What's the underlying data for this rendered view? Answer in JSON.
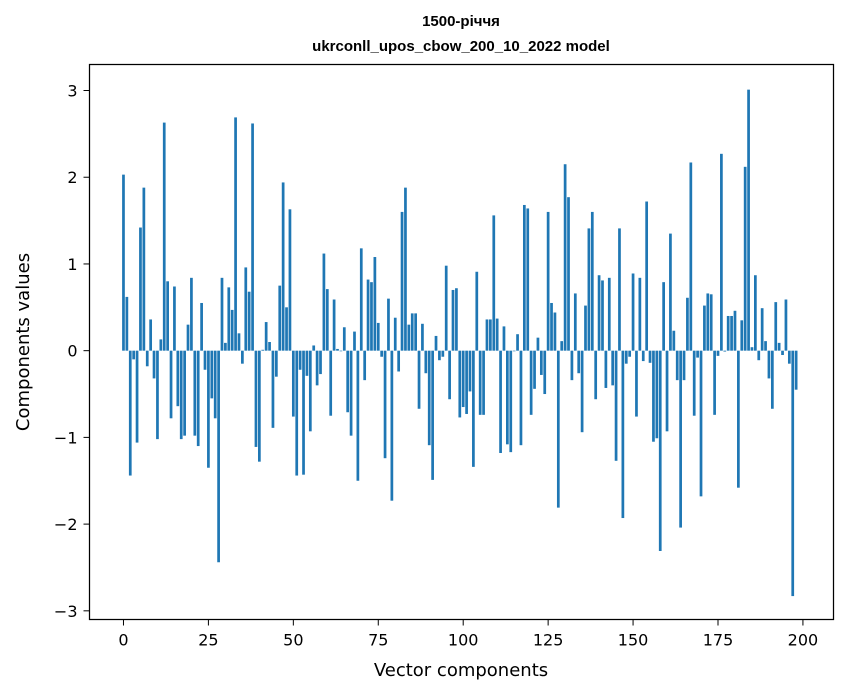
{
  "chart_data": {
    "type": "bar",
    "title_line1": "1500-річчя",
    "title_line2": "ukrconll_upos_cbow_200_10_2022 model",
    "xlabel": "Vector components",
    "ylabel": "Components values",
    "xlim": [
      -10,
      209
    ],
    "ylim": [
      -3.1,
      3.3
    ],
    "xticks": [
      0,
      25,
      50,
      75,
      100,
      125,
      150,
      175,
      200
    ],
    "xtick_labels": [
      "0",
      "25",
      "50",
      "75",
      "100",
      "125",
      "150",
      "175",
      "200"
    ],
    "yticks": [
      3,
      2,
      1,
      0,
      -1,
      -2,
      -3
    ],
    "ytick_labels": [
      "3",
      "2",
      "1",
      "0",
      "−1",
      "−2",
      "−3"
    ],
    "grid": false,
    "bar_color": "#1f77b4",
    "values": [
      2.03,
      0.62,
      -1.44,
      -0.1,
      -1.06,
      1.42,
      1.88,
      -0.18,
      0.36,
      -0.32,
      -1.02,
      0.13,
      2.63,
      0.8,
      -0.78,
      0.74,
      -0.64,
      -1.02,
      -0.98,
      0.3,
      0.84,
      -0.98,
      -1.1,
      0.55,
      -0.22,
      -1.35,
      -0.55,
      -0.78,
      -2.44,
      0.84,
      0.09,
      0.73,
      0.47,
      2.69,
      0.2,
      -0.15,
      0.96,
      0.68,
      2.62,
      -1.11,
      -1.28,
      0.01,
      0.33,
      0.1,
      -0.89,
      -0.3,
      0.75,
      1.94,
      0.5,
      1.63,
      -0.76,
      -1.44,
      -0.22,
      -1.43,
      -0.29,
      -0.93,
      0.06,
      -0.4,
      -0.27,
      1.12,
      0.71,
      -0.75,
      0.59,
      0.02,
      0.0,
      0.27,
      -0.71,
      -0.98,
      0.22,
      -1.5,
      1.18,
      -0.34,
      0.82,
      0.79,
      1.08,
      0.32,
      -0.07,
      -1.24,
      0.6,
      -1.73,
      0.38,
      -0.24,
      1.6,
      1.88,
      0.3,
      0.43,
      0.43,
      -0.67,
      0.31,
      -0.26,
      -1.09,
      -1.49,
      0.17,
      -0.11,
      -0.07,
      0.98,
      -0.56,
      0.7,
      0.72,
      -0.77,
      -0.65,
      -0.73,
      -0.47,
      -1.34,
      0.91,
      -0.74,
      -0.74,
      0.36,
      0.36,
      1.56,
      0.37,
      -1.18,
      0.28,
      -1.08,
      -1.17,
      0.0,
      0.19,
      -1.09,
      1.68,
      1.64,
      -0.74,
      -0.44,
      0.15,
      -0.28,
      -0.5,
      1.6,
      0.55,
      0.44,
      -1.81,
      0.11,
      2.15,
      1.77,
      -0.34,
      0.66,
      -0.26,
      -0.94,
      0.52,
      1.41,
      1.6,
      -0.56,
      0.87,
      0.81,
      -0.43,
      0.84,
      -0.4,
      -1.27,
      1.41,
      -1.93,
      -0.15,
      -0.07,
      0.89,
      -0.76,
      0.84,
      -0.12,
      1.72,
      -0.14,
      -1.05,
      -1.01,
      -2.31,
      0.79,
      -0.93,
      1.35,
      0.23,
      -0.34,
      -2.04,
      -0.34,
      0.61,
      2.17,
      -0.75,
      -0.08,
      -1.68,
      0.52,
      0.66,
      0.65,
      -0.74,
      -0.06,
      2.27,
      -0.01,
      0.4,
      0.4,
      0.46,
      -1.58,
      0.35,
      2.12,
      3.01,
      0.04,
      0.87,
      -0.11,
      0.49,
      0.11,
      -0.32,
      -0.67,
      0.56,
      0.09,
      -0.05,
      0.59,
      -0.15,
      -2.83,
      -0.45
    ]
  }
}
